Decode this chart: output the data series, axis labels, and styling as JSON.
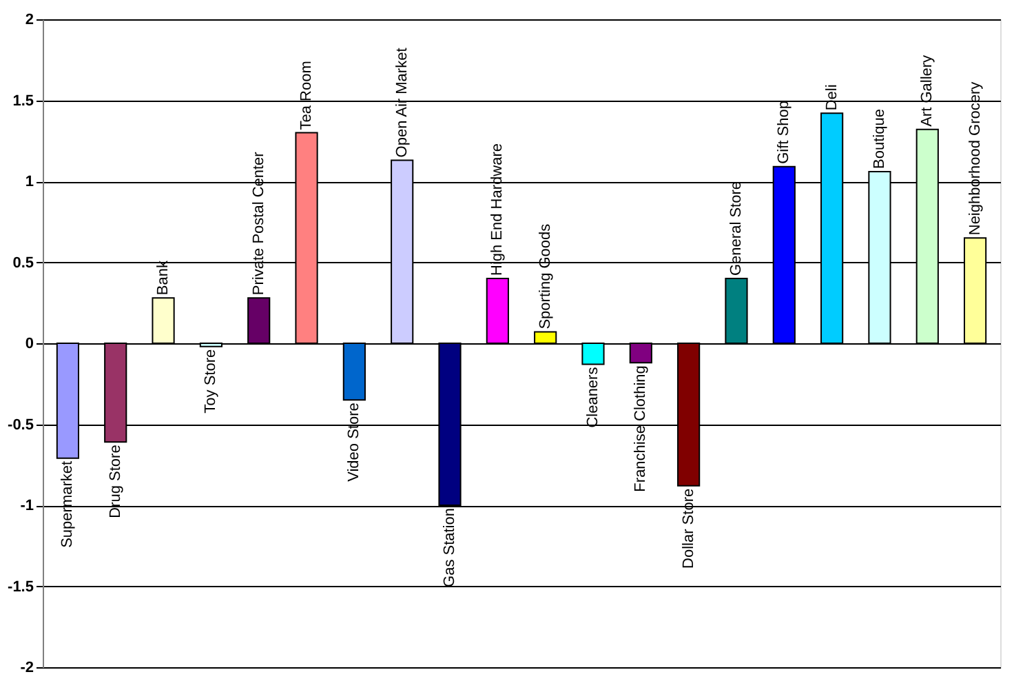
{
  "chart_data": {
    "type": "bar",
    "categories": [
      "Supermarket",
      "Drug Store",
      "Bank",
      "Toy Store",
      "Private Postal Center",
      "Tea Room",
      "Video Store",
      "Open Air Market",
      "Gas Station",
      "High End Hardware",
      "Sporting Goods",
      "Cleaners",
      "Franchise Clothing",
      "Dollar Store",
      "General Store",
      "Gift Shop",
      "Deli",
      "Boutique",
      "Art Gallery",
      "Neighborhood Grocery"
    ],
    "values": [
      -0.71,
      -0.61,
      0.28,
      -0.02,
      0.28,
      1.3,
      -0.35,
      1.13,
      -1.0,
      0.4,
      0.07,
      -0.13,
      -0.12,
      -0.88,
      0.4,
      1.09,
      1.42,
      1.06,
      1.32,
      0.65
    ],
    "colors": [
      "#9999ff",
      "#993366",
      "#ffffcc",
      "#ccffff",
      "#660066",
      "#ff8080",
      "#0066cc",
      "#ccccff",
      "#000080",
      "#ff00ff",
      "#ffff00",
      "#00ffff",
      "#800080",
      "#800000",
      "#008080",
      "#0000ff",
      "#00ccff",
      "#ccffff",
      "#ccffcc",
      "#ffff99"
    ],
    "ylim": [
      -2,
      2
    ],
    "yticks": [
      -2,
      -1.5,
      -1,
      -0.5,
      0,
      0.5,
      1,
      1.5,
      2
    ],
    "grid": "y"
  }
}
